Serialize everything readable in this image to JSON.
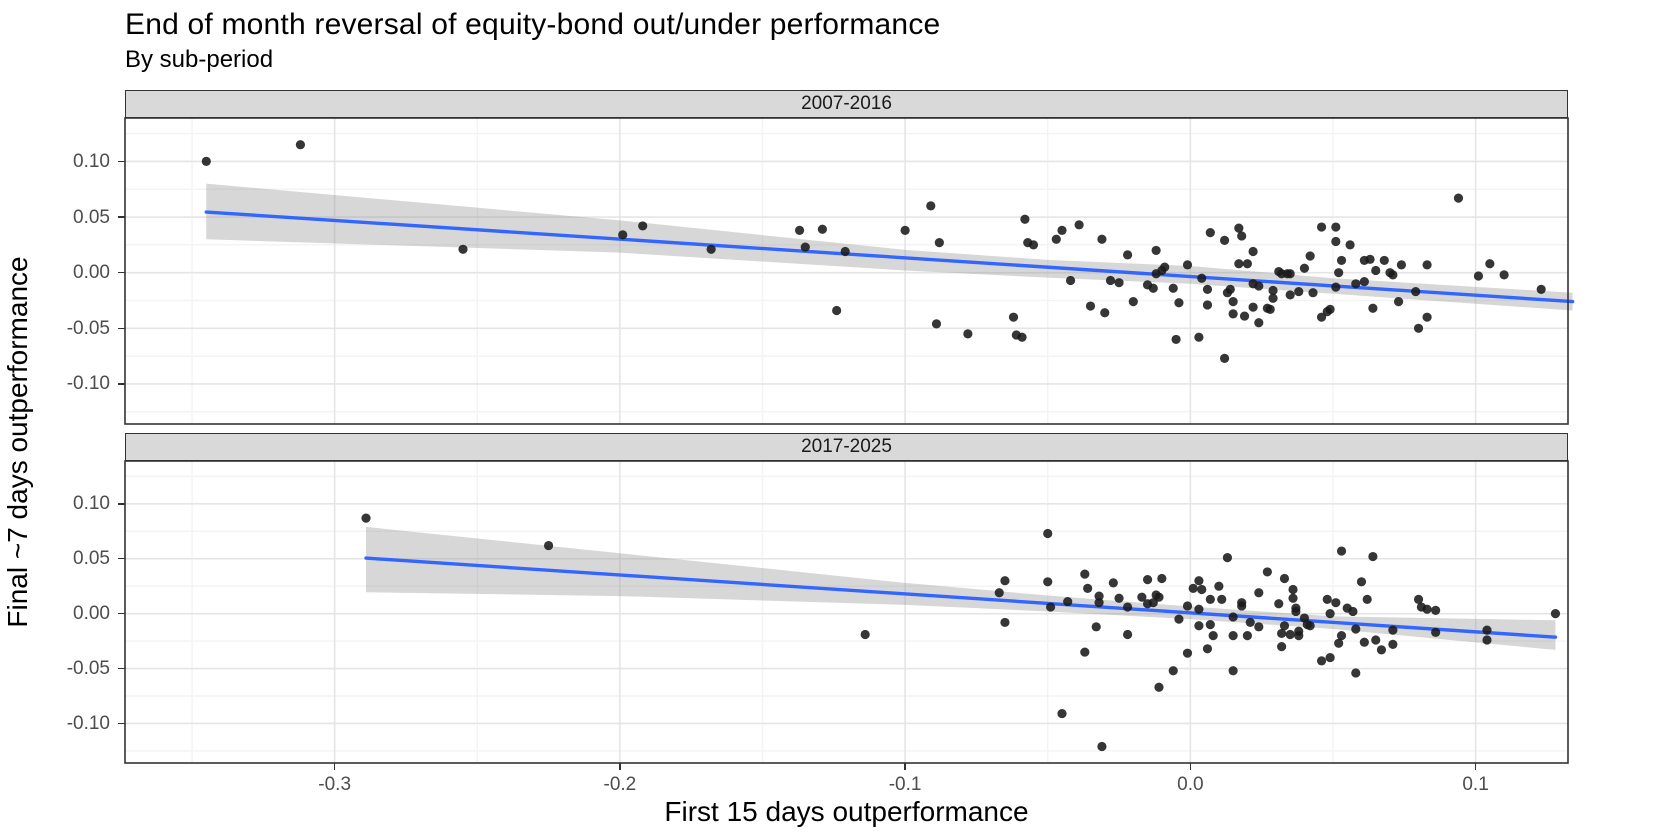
{
  "header": {
    "title": "End of month reversal of equity-bond out/under performance",
    "subtitle": "By sub-period"
  },
  "chart_data": {
    "type": "scatter",
    "title": "End of month reversal of equity-bond out/under performance",
    "subtitle": "By sub-period",
    "xlabel": "First 15 days outperformance",
    "ylabel": "Final ~7 days outperformance",
    "xlim": [
      -0.3735,
      0.1324
    ],
    "ylim": [
      -0.136,
      0.139
    ],
    "x_ticks": [
      -0.3,
      -0.2,
      -0.1,
      0.0,
      0.1
    ],
    "x_tick_labels": [
      "-0.3",
      "-0.2",
      "-0.1",
      "0.0",
      "0.1"
    ],
    "y_ticks": [
      0.1,
      0.05,
      0.0,
      -0.05,
      -0.1
    ],
    "y_tick_labels": [
      "0.10",
      "0.05",
      "0.00",
      "-0.05",
      "-0.10"
    ],
    "x_minor_ticks": [
      -0.35,
      -0.25,
      -0.15,
      -0.05,
      0.05
    ],
    "y_minor_ticks": [
      0.125,
      0.075,
      0.025,
      -0.025,
      -0.075,
      -0.125
    ],
    "grid": true,
    "legend_position": "none",
    "colors": {
      "point": "#1a1a1a",
      "trend_line": "#3366ff",
      "confidence_band": "rgba(140,140,140,0.35)",
      "strip_fill": "#d9d9d9",
      "panel_border": "#333333",
      "grid_major": "#e5e5e5",
      "grid_minor": "#f3f3f3",
      "tick_text": "#4d4d4d"
    },
    "facets": [
      {
        "label": "2007-2016",
        "trend": {
          "x1": -0.345,
          "y1": 0.0545,
          "x2": 0.134,
          "y2": -0.026
        },
        "band": {
          "x": [
            -0.345,
            -0.2,
            -0.1,
            -0.05,
            0.0,
            0.05,
            0.134
          ],
          "top": [
            0.08,
            0.047,
            0.0205,
            0.0115,
            0.006,
            -0.005,
            -0.018
          ],
          "bottom": [
            0.03,
            0.018,
            0.002,
            -0.0045,
            -0.01,
            -0.019,
            -0.034
          ]
        },
        "points": [
          [
            -0.345,
            0.1
          ],
          [
            -0.312,
            0.115
          ],
          [
            -0.255,
            0.021
          ],
          [
            -0.199,
            0.034
          ],
          [
            -0.192,
            0.042
          ],
          [
            -0.168,
            0.021
          ],
          [
            -0.137,
            0.038
          ],
          [
            -0.135,
            0.023
          ],
          [
            -0.129,
            0.039
          ],
          [
            -0.124,
            -0.034
          ],
          [
            -0.121,
            0.019
          ],
          [
            -0.1,
            0.038
          ],
          [
            -0.091,
            0.06
          ],
          [
            -0.089,
            -0.046
          ],
          [
            -0.088,
            0.027
          ],
          [
            -0.078,
            -0.055
          ],
          [
            -0.062,
            -0.04
          ],
          [
            -0.061,
            -0.056
          ],
          [
            -0.059,
            -0.058
          ],
          [
            -0.058,
            0.048
          ],
          [
            -0.057,
            0.027
          ],
          [
            -0.055,
            0.025
          ],
          [
            -0.047,
            0.03
          ],
          [
            -0.045,
            0.038
          ],
          [
            -0.042,
            -0.007
          ],
          [
            -0.039,
            0.043
          ],
          [
            -0.035,
            -0.03
          ],
          [
            -0.031,
            0.03
          ],
          [
            -0.03,
            -0.036
          ],
          [
            -0.028,
            -0.007
          ],
          [
            -0.025,
            -0.009
          ],
          [
            -0.022,
            0.016
          ],
          [
            -0.02,
            -0.026
          ],
          [
            -0.015,
            -0.011
          ],
          [
            -0.013,
            -0.014
          ],
          [
            -0.012,
            0.02
          ],
          [
            -0.012,
            -0.001
          ],
          [
            -0.01,
            0.002
          ],
          [
            -0.009,
            0.005
          ],
          [
            -0.006,
            -0.014
          ],
          [
            -0.005,
            -0.06
          ],
          [
            -0.004,
            -0.027
          ],
          [
            -0.001,
            0.007
          ],
          [
            0.003,
            -0.058
          ],
          [
            0.004,
            -0.005
          ],
          [
            0.006,
            -0.015
          ],
          [
            0.006,
            -0.029
          ],
          [
            0.007,
            0.036
          ],
          [
            0.012,
            0.029
          ],
          [
            0.012,
            -0.077
          ],
          [
            0.013,
            -0.018
          ],
          [
            0.014,
            -0.015
          ],
          [
            0.015,
            -0.026
          ],
          [
            0.015,
            -0.037
          ],
          [
            0.017,
            0.04
          ],
          [
            0.017,
            0.008
          ],
          [
            0.018,
            0.033
          ],
          [
            0.019,
            -0.039
          ],
          [
            0.02,
            0.008
          ],
          [
            0.022,
            0.019
          ],
          [
            0.022,
            -0.01
          ],
          [
            0.022,
            -0.031
          ],
          [
            0.024,
            -0.012
          ],
          [
            0.024,
            -0.045
          ],
          [
            0.027,
            -0.032
          ],
          [
            0.028,
            -0.033
          ],
          [
            0.029,
            -0.016
          ],
          [
            0.029,
            -0.023
          ],
          [
            0.031,
            0.001
          ],
          [
            0.032,
            -0.001
          ],
          [
            0.034,
            -0.001
          ],
          [
            0.035,
            -0.001
          ],
          [
            0.035,
            -0.02
          ],
          [
            0.038,
            -0.017
          ],
          [
            0.04,
            0.004
          ],
          [
            0.042,
            0.015
          ],
          [
            0.043,
            -0.018
          ],
          [
            0.046,
            0.041
          ],
          [
            0.046,
            -0.04
          ],
          [
            0.048,
            -0.035
          ],
          [
            0.049,
            -0.033
          ],
          [
            0.051,
            0.041
          ],
          [
            0.051,
            0.028
          ],
          [
            0.051,
            -0.013
          ],
          [
            0.052,
            0.0
          ],
          [
            0.053,
            0.011
          ],
          [
            0.056,
            0.025
          ],
          [
            0.058,
            -0.01
          ],
          [
            0.061,
            0.011
          ],
          [
            0.061,
            -0.008
          ],
          [
            0.063,
            0.012
          ],
          [
            0.064,
            -0.032
          ],
          [
            0.065,
            0.002
          ],
          [
            0.068,
            0.011
          ],
          [
            0.07,
            0.0
          ],
          [
            0.071,
            -0.002
          ],
          [
            0.073,
            -0.026
          ],
          [
            0.074,
            0.007
          ],
          [
            0.079,
            -0.017
          ],
          [
            0.08,
            -0.05
          ],
          [
            0.083,
            0.007
          ],
          [
            0.083,
            -0.04
          ],
          [
            0.094,
            0.067
          ],
          [
            0.101,
            -0.003
          ],
          [
            0.105,
            0.008
          ],
          [
            0.11,
            -0.002
          ],
          [
            0.123,
            -0.015
          ]
        ]
      },
      {
        "label": "2017-2025",
        "trend": {
          "x1": -0.289,
          "y1": 0.0506,
          "x2": 0.128,
          "y2": -0.0214
        },
        "band": {
          "x": [
            -0.289,
            -0.2,
            -0.1,
            -0.05,
            0.0,
            0.05,
            0.128
          ],
          "top": [
            0.079,
            0.055,
            0.028,
            0.0165,
            0.0065,
            -0.0025,
            -0.006
          ],
          "bottom": [
            0.0195,
            0.016,
            0.008,
            0.002,
            -0.005,
            -0.014,
            -0.033
          ]
        },
        "points": [
          [
            -0.289,
            0.087
          ],
          [
            -0.225,
            0.062
          ],
          [
            -0.114,
            -0.019
          ],
          [
            -0.067,
            0.019
          ],
          [
            -0.065,
            0.03
          ],
          [
            -0.065,
            -0.008
          ],
          [
            -0.05,
            0.073
          ],
          [
            -0.05,
            0.029
          ],
          [
            -0.049,
            0.006
          ],
          [
            -0.045,
            -0.091
          ],
          [
            -0.043,
            0.011
          ],
          [
            -0.037,
            0.036
          ],
          [
            -0.037,
            -0.035
          ],
          [
            -0.036,
            0.023
          ],
          [
            -0.033,
            -0.012
          ],
          [
            -0.032,
            0.016
          ],
          [
            -0.032,
            0.01
          ],
          [
            -0.031,
            -0.121
          ],
          [
            -0.027,
            0.028
          ],
          [
            -0.025,
            0.014
          ],
          [
            -0.022,
            0.006
          ],
          [
            -0.022,
            -0.019
          ],
          [
            -0.017,
            0.015
          ],
          [
            -0.015,
            0.031
          ],
          [
            -0.015,
            0.009
          ],
          [
            -0.013,
            0.01
          ],
          [
            -0.012,
            0.017
          ],
          [
            -0.011,
            0.015
          ],
          [
            -0.011,
            -0.067
          ],
          [
            -0.01,
            0.032
          ],
          [
            -0.006,
            -0.052
          ],
          [
            -0.004,
            -0.005
          ],
          [
            -0.001,
            0.007
          ],
          [
            -0.001,
            -0.036
          ],
          [
            0.001,
            0.023
          ],
          [
            0.003,
            0.03
          ],
          [
            0.003,
            0.004
          ],
          [
            0.003,
            -0.011
          ],
          [
            0.004,
            0.022
          ],
          [
            0.006,
            -0.032
          ],
          [
            0.007,
            0.013
          ],
          [
            0.007,
            -0.01
          ],
          [
            0.008,
            -0.02
          ],
          [
            0.01,
            0.025
          ],
          [
            0.011,
            0.013
          ],
          [
            0.013,
            0.051
          ],
          [
            0.015,
            -0.003
          ],
          [
            0.015,
            -0.02
          ],
          [
            0.015,
            -0.052
          ],
          [
            0.018,
            0.01
          ],
          [
            0.018,
            0.007
          ],
          [
            0.02,
            -0.02
          ],
          [
            0.021,
            -0.008
          ],
          [
            0.024,
            0.019
          ],
          [
            0.024,
            -0.012
          ],
          [
            0.027,
            0.038
          ],
          [
            0.031,
            0.009
          ],
          [
            0.032,
            -0.018
          ],
          [
            0.032,
            -0.03
          ],
          [
            0.033,
            0.032
          ],
          [
            0.033,
            -0.011
          ],
          [
            0.035,
            -0.019
          ],
          [
            0.036,
            0.014
          ],
          [
            0.036,
            0.022
          ],
          [
            0.037,
            0.005
          ],
          [
            0.037,
            0.002
          ],
          [
            0.038,
            -0.016
          ],
          [
            0.038,
            -0.02
          ],
          [
            0.04,
            -0.004
          ],
          [
            0.041,
            -0.01
          ],
          [
            0.042,
            -0.011
          ],
          [
            0.046,
            -0.043
          ],
          [
            0.048,
            0.013
          ],
          [
            0.049,
            -0.04
          ],
          [
            0.049,
            0.0
          ],
          [
            0.051,
            0.01
          ],
          [
            0.052,
            -0.027
          ],
          [
            0.053,
            0.057
          ],
          [
            0.053,
            -0.02
          ],
          [
            0.055,
            0.005
          ],
          [
            0.057,
            0.002
          ],
          [
            0.058,
            -0.014
          ],
          [
            0.058,
            -0.054
          ],
          [
            0.06,
            0.029
          ],
          [
            0.061,
            -0.026
          ],
          [
            0.062,
            0.013
          ],
          [
            0.064,
            0.052
          ],
          [
            0.065,
            -0.024
          ],
          [
            0.067,
            -0.033
          ],
          [
            0.071,
            -0.028
          ],
          [
            0.071,
            -0.015
          ],
          [
            0.08,
            0.013
          ],
          [
            0.081,
            0.006
          ],
          [
            0.083,
            0.004
          ],
          [
            0.086,
            0.003
          ],
          [
            0.086,
            -0.017
          ],
          [
            0.104,
            -0.015
          ],
          [
            0.104,
            -0.024
          ],
          [
            0.128,
            0.0
          ]
        ]
      }
    ]
  }
}
